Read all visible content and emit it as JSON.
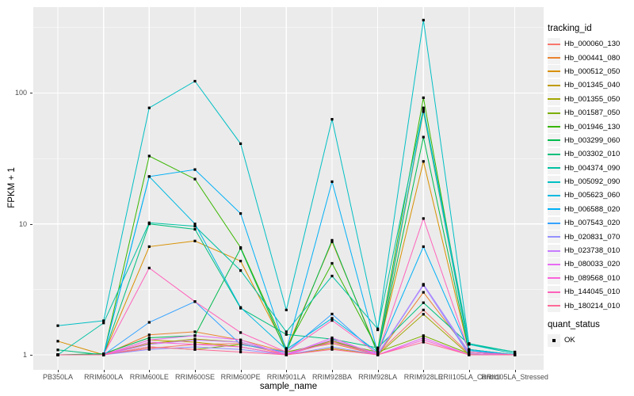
{
  "chart_data": {
    "type": "line",
    "title": "",
    "xlabel": "sample_name",
    "ylabel": "FPKM + 1",
    "y_scale": "log10",
    "ylim": [
      0.93,
      450
    ],
    "y_ticks": [
      {
        "label": "1",
        "value": 1
      },
      {
        "label": "10",
        "value": 10
      },
      {
        "label": "100",
        "value": 100
      }
    ],
    "y_minor_gridlines": [
      3.162,
      31.62,
      316.2
    ],
    "grid": true,
    "legend_position": "right",
    "legend_title": "tracking_id",
    "quant_legend": {
      "title": "quant_status",
      "items": [
        {
          "label": "OK"
        }
      ]
    },
    "categories": [
      "PB350LA",
      "RRIM600LA",
      "RRIM600LE",
      "RRIM600SE",
      "RRIM600PE",
      "RRIM901LA",
      "RRIM928BA",
      "RRIM928LA",
      "RRIM928LE",
      "RRII105LA_Control",
      "RRII105LA_Stressed"
    ],
    "series": [
      {
        "name": "Hb_000060_130",
        "color": "#F8766D",
        "values": [
          1.0,
          1.0,
          1.12,
          1.2,
          1.22,
          1.0,
          1.3,
          1.02,
          2.2,
          1.02,
          1.0
        ]
      },
      {
        "name": "Hb_000441_080",
        "color": "#EA8331",
        "values": [
          1.0,
          1.0,
          1.42,
          1.5,
          1.3,
          1.05,
          1.22,
          1.0,
          3.0,
          1.05,
          1.0
        ]
      },
      {
        "name": "Hb_000512_050",
        "color": "#D89000",
        "values": [
          1.27,
          1.0,
          6.7,
          7.4,
          5.2,
          1.1,
          7.3,
          1.05,
          30.0,
          1.05,
          1.0
        ]
      },
      {
        "name": "Hb_001345_040",
        "color": "#C09B00",
        "values": [
          1.0,
          1.0,
          1.3,
          1.25,
          1.15,
          1.0,
          1.12,
          1.0,
          72.0,
          1.1,
          1.0
        ]
      },
      {
        "name": "Hb_001355_050",
        "color": "#A3A500",
        "values": [
          1.0,
          1.0,
          1.22,
          1.32,
          1.25,
          1.02,
          1.28,
          1.0,
          2.04,
          1.0,
          1.0
        ]
      },
      {
        "name": "Hb_001587_050",
        "color": "#7CAE00",
        "values": [
          1.0,
          1.0,
          1.15,
          1.1,
          1.2,
          1.05,
          1.25,
          1.05,
          1.4,
          1.02,
          1.0
        ]
      },
      {
        "name": "Hb_001946_130",
        "color": "#39B600",
        "values": [
          1.0,
          1.0,
          33.0,
          22.0,
          6.6,
          1.12,
          5.0,
          1.1,
          92.0,
          1.1,
          1.0
        ]
      },
      {
        "name": "Hb_003299_060",
        "color": "#00BB4E",
        "values": [
          1.0,
          1.02,
          1.35,
          1.4,
          6.5,
          1.05,
          7.5,
          1.02,
          46.0,
          1.05,
          1.0
        ]
      },
      {
        "name": "Hb_003302_010",
        "color": "#00BF7D",
        "values": [
          1.09,
          1.0,
          10.0,
          9.1,
          2.27,
          1.43,
          1.32,
          1.13,
          2.5,
          1.2,
          1.05
        ]
      },
      {
        "name": "Hb_004374_090",
        "color": "#00C1A3",
        "values": [
          1.0,
          1.75,
          10.2,
          9.6,
          4.4,
          1.5,
          4.0,
          1.58,
          77.0,
          1.22,
          1.05
        ]
      },
      {
        "name": "Hb_005092_090",
        "color": "#00BFC4",
        "values": [
          1.67,
          1.82,
          77.0,
          123.0,
          41.0,
          2.2,
          63.0,
          1.55,
          360.0,
          1.2,
          1.02
        ]
      },
      {
        "name": "Hb_005623_060",
        "color": "#00BAE0",
        "values": [
          1.0,
          1.0,
          23.0,
          10.0,
          2.3,
          1.1,
          1.9,
          1.05,
          74.0,
          1.1,
          1.0
        ]
      },
      {
        "name": "Hb_006588_020",
        "color": "#00B0F6",
        "values": [
          1.0,
          1.0,
          23.0,
          26.0,
          12.0,
          1.08,
          21.0,
          1.04,
          6.7,
          1.08,
          1.0
        ]
      },
      {
        "name": "Hb_007543_020",
        "color": "#35A2FF",
        "values": [
          1.0,
          1.0,
          1.77,
          2.55,
          1.2,
          1.05,
          2.05,
          1.0,
          3.4,
          1.0,
          1.0
        ]
      },
      {
        "name": "Hb_020831_070",
        "color": "#9590FF",
        "values": [
          1.0,
          1.0,
          1.1,
          1.15,
          1.1,
          1.0,
          1.15,
          1.0,
          3.46,
          1.05,
          1.0
        ]
      },
      {
        "name": "Hb_023738_010",
        "color": "#C77CFF",
        "values": [
          1.0,
          1.0,
          1.2,
          1.3,
          1.25,
          1.02,
          1.3,
          1.02,
          3.4,
          1.02,
          1.0
        ]
      },
      {
        "name": "Hb_080033_020",
        "color": "#E76BF3",
        "values": [
          1.0,
          1.0,
          1.3,
          1.4,
          1.3,
          1.0,
          1.35,
          1.0,
          1.35,
          1.0,
          1.0
        ]
      },
      {
        "name": "Hb_089568_010",
        "color": "#FA62DB",
        "values": [
          1.0,
          1.0,
          1.25,
          1.2,
          1.15,
          1.0,
          1.25,
          1.0,
          1.3,
          1.0,
          1.0
        ]
      },
      {
        "name": "Hb_144045_010",
        "color": "#FF62BC",
        "values": [
          1.0,
          1.0,
          4.6,
          2.55,
          1.48,
          1.05,
          1.83,
          1.02,
          11.0,
          1.05,
          1.0
        ]
      },
      {
        "name": "Hb_180214_010",
        "color": "#FF6A98",
        "values": [
          1.0,
          1.0,
          1.15,
          1.1,
          1.05,
          1.0,
          1.1,
          1.0,
          1.25,
          1.0,
          1.0
        ]
      }
    ],
    "colors": {
      "panel_bg": "#EBEBEB",
      "grid": "#FFFFFF",
      "point": "#000000",
      "tick_text": "#4D4D4D",
      "legend_key_bg": "#F2F2F2"
    }
  }
}
